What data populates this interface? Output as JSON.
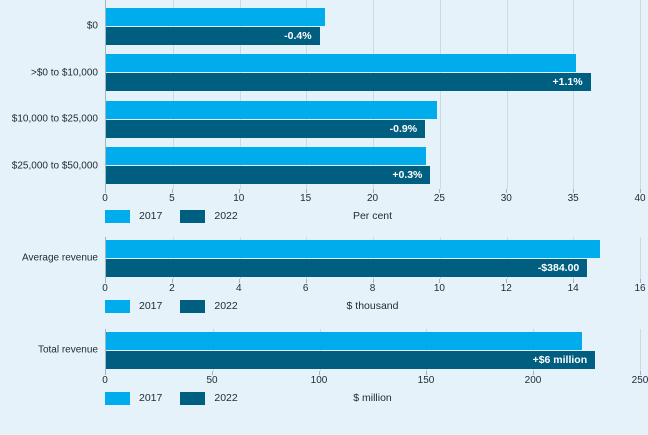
{
  "page": {
    "background": "#E6F2FA"
  },
  "colors": {
    "series_2017": "#00ACEC",
    "series_2022": "#005E80",
    "gridline": "#CBDBE4",
    "axis_line": "#9FB6C2",
    "text": "#1E2A33",
    "value_label_text": "#FFFFFF"
  },
  "legend": {
    "items": [
      {
        "label": "2017",
        "color": "#00ACEC"
      },
      {
        "label": "2022",
        "color": "#005E80"
      }
    ]
  },
  "chart_data": [
    {
      "type": "bar",
      "orientation": "horizontal",
      "title": "",
      "categories": [
        "$0",
        ">$0 to $10,000",
        "$10,000 to $25,000",
        "$25,000 to $50,000"
      ],
      "series": [
        {
          "name": "2017",
          "values": [
            16.4,
            35.2,
            24.8,
            24.0
          ]
        },
        {
          "name": "2022",
          "values": [
            16.0,
            36.3,
            23.9,
            24.3
          ]
        }
      ],
      "bar_labels_on_2022": [
        "-0.4%",
        "+1.1%",
        "-0.9%",
        "+0.3%"
      ],
      "xlabel": "Per cent",
      "xlim": [
        0,
        40
      ],
      "xticks": [
        0,
        5,
        10,
        15,
        20,
        25,
        30,
        35,
        40
      ],
      "grid": true,
      "legend_position": "bottom-left"
    },
    {
      "type": "bar",
      "orientation": "horizontal",
      "title": "",
      "categories": [
        "Average revenue"
      ],
      "series": [
        {
          "name": "2017",
          "values": [
            14.8
          ]
        },
        {
          "name": "2022",
          "values": [
            14.42
          ]
        }
      ],
      "bar_labels_on_2022": [
        "-$384.00"
      ],
      "xlabel": "$ thousand",
      "xlim": [
        0,
        16
      ],
      "xticks": [
        0,
        2,
        4,
        6,
        8,
        10,
        12,
        14,
        16
      ],
      "grid": true,
      "legend_position": "bottom-left"
    },
    {
      "type": "bar",
      "orientation": "horizontal",
      "title": "",
      "categories": [
        "Total revenue"
      ],
      "series": [
        {
          "name": "2017",
          "values": [
            223
          ]
        },
        {
          "name": "2022",
          "values": [
            229
          ]
        }
      ],
      "bar_labels_on_2022": [
        "+$6 million"
      ],
      "xlabel": "$ million",
      "xlim": [
        0,
        250
      ],
      "xticks": [
        0,
        50,
        100,
        150,
        200,
        250
      ],
      "grid": true,
      "legend_position": "bottom-left"
    }
  ]
}
